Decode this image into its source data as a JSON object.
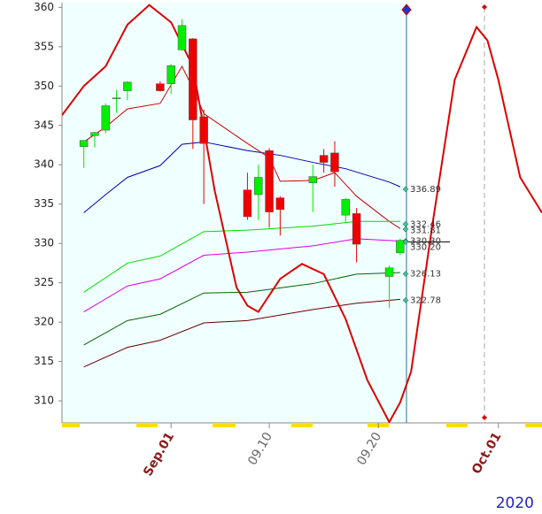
{
  "chart_data": {
    "type": "candlestick",
    "year_label": "2020",
    "xlim": [
      "2020-08-22",
      "2020-10-05"
    ],
    "ylim": [
      307.2,
      360.6
    ],
    "yticks": [
      310,
      315,
      320,
      325,
      330,
      335,
      340,
      345,
      350,
      355,
      360
    ],
    "xticks": [
      {
        "value": "2020-09-01",
        "label": "Sep.01"
      },
      {
        "value": "2020-09-10",
        "label": "09.10"
      },
      {
        "value": "2020-09-20",
        "label": "09.20"
      },
      {
        "value": "2020-10-01",
        "label": "Oct.01"
      }
    ],
    "up_color": "#00ee00",
    "down_color": "#ee0000",
    "x": [
      "2020-08-24",
      "2020-08-25",
      "2020-08-26",
      "2020-08-27",
      "2020-08-28",
      "2020-08-31",
      "2020-09-01",
      "2020-09-02",
      "2020-09-03",
      "2020-09-04",
      "2020-09-08",
      "2020-09-09",
      "2020-09-10",
      "2020-09-11",
      "2020-09-14",
      "2020-09-15",
      "2020-09-16",
      "2020-09-17",
      "2020-09-18",
      "2020-09-21",
      "2020-09-22"
    ],
    "open": [
      342.3,
      343.7,
      344.4,
      348.4,
      349.4,
      350.3,
      350.3,
      354.6,
      356.0,
      346.1,
      336.8,
      336.2,
      341.8,
      335.8,
      337.7,
      341.2,
      341.5,
      333.6,
      333.8,
      325.8,
      328.8
    ],
    "close": [
      343.1,
      344.1,
      347.5,
      348.5,
      350.5,
      349.4,
      352.6,
      357.7,
      345.7,
      342.7,
      333.4,
      338.4,
      334.0,
      334.3,
      338.5,
      340.3,
      339.1,
      335.6,
      329.9,
      326.9,
      330.4
    ],
    "high": [
      343.1,
      344.2,
      347.8,
      349.5,
      350.6,
      350.6,
      352.8,
      358.5,
      356.1,
      347.0,
      339.0,
      340.0,
      342.1,
      336.0,
      340.0,
      342.0,
      343.0,
      335.8,
      334.5,
      327.2,
      330.6
    ],
    "low": [
      339.6,
      342.2,
      344.0,
      346.6,
      348.2,
      349.3,
      349.0,
      354.5,
      342.0,
      335.0,
      333.0,
      333.0,
      332.0,
      331.0,
      334.0,
      339.0,
      337.2,
      332.6,
      327.6,
      321.8,
      328.5
    ],
    "series": [
      {
        "color": "#0000aa",
        "width": 1,
        "x": [
          "2020-08-24",
          "2020-08-26",
          "2020-08-28",
          "2020-08-31",
          "2020-09-02",
          "2020-09-04",
          "2020-09-08",
          "2020-09-11",
          "2020-09-14",
          "2020-09-17",
          "2020-09-21",
          "2020-09-22"
        ],
        "values": [
          333.9,
          336.2,
          338.4,
          339.9,
          342.6,
          342.9,
          341.8,
          341.2,
          340.3,
          339.5,
          337.8,
          337.2
        ]
      },
      {
        "color": "#cc0000",
        "width": 1,
        "x": [
          "2020-08-24",
          "2020-08-26",
          "2020-08-28",
          "2020-08-31",
          "2020-09-02",
          "2020-09-03",
          "2020-09-04",
          "2020-09-08",
          "2020-09-10",
          "2020-09-11",
          "2020-09-14",
          "2020-09-16",
          "2020-09-18",
          "2020-09-21",
          "2020-09-22"
        ],
        "values": [
          342.9,
          344.8,
          347.1,
          347.8,
          352.5,
          349.7,
          346.5,
          342.7,
          340.9,
          337.9,
          338.0,
          339.0,
          336.0,
          332.8,
          331.9
        ]
      },
      {
        "color": "#00dd00",
        "width": 1,
        "x": [
          "2020-08-24",
          "2020-08-28",
          "2020-08-31",
          "2020-09-04",
          "2020-09-08",
          "2020-09-14",
          "2020-09-18",
          "2020-09-22"
        ],
        "values": [
          323.8,
          327.5,
          328.4,
          331.5,
          331.7,
          332.2,
          332.8,
          332.8
        ]
      },
      {
        "color": "#dd00dd",
        "width": 1,
        "x": [
          "2020-08-24",
          "2020-08-28",
          "2020-08-31",
          "2020-09-04",
          "2020-09-08",
          "2020-09-14",
          "2020-09-18",
          "2020-09-22"
        ],
        "values": [
          321.3,
          324.6,
          325.5,
          328.5,
          328.9,
          329.7,
          330.6,
          330.3
        ]
      },
      {
        "color": "#006600",
        "width": 1,
        "x": [
          "2020-08-24",
          "2020-08-28",
          "2020-08-31",
          "2020-09-04",
          "2020-09-08",
          "2020-09-14",
          "2020-09-18",
          "2020-09-22"
        ],
        "values": [
          317.1,
          320.2,
          321.0,
          323.7,
          323.8,
          324.9,
          326.1,
          326.3
        ]
      },
      {
        "color": "#660000",
        "width": 1,
        "x": [
          "2020-08-24",
          "2020-08-28",
          "2020-08-31",
          "2020-09-04",
          "2020-09-08",
          "2020-09-14",
          "2020-09-18",
          "2020-09-22"
        ],
        "values": [
          314.3,
          316.8,
          317.7,
          319.9,
          320.2,
          321.6,
          322.4,
          322.9
        ]
      },
      {
        "color": "#dd0000",
        "width": 2,
        "x": [
          "2020-08-22",
          "2020-08-24",
          "2020-08-26",
          "2020-08-28",
          "2020-08-30",
          "2020-09-01",
          "2020-09-03",
          "2020-09-05",
          "2020-09-07",
          "2020-09-08",
          "2020-09-09",
          "2020-09-11",
          "2020-09-13",
          "2020-09-15",
          "2020-09-17",
          "2020-09-19",
          "2020-09-21",
          "2020-09-22",
          "2020-09-23",
          "2020-09-25",
          "2020-09-27",
          "2020-09-29",
          "2020-09-30",
          "2020-10-01",
          "2020-10-03",
          "2020-10-05"
        ],
        "values": [
          346.3,
          350.0,
          352.5,
          357.8,
          360.3,
          358.1,
          352.5,
          336.7,
          324.4,
          322.1,
          321.3,
          325.5,
          327.4,
          326.1,
          320.4,
          312.6,
          307.3,
          309.8,
          313.7,
          332.8,
          350.8,
          357.5,
          355.8,
          350.8,
          338.4,
          333.9
        ]
      }
    ],
    "annotations": [
      {
        "value": 336.89,
        "label": "336.89"
      },
      {
        "value": 332.46,
        "label": "332.46"
      },
      {
        "value": 331.81,
        "label": "331.81"
      },
      {
        "value": 330.3,
        "label": "330.30"
      },
      {
        "value": 330.2,
        "label": "330.20"
      },
      {
        "value": 326.13,
        "label": "326.13"
      },
      {
        "value": 322.78,
        "label": "322.78"
      }
    ]
  }
}
